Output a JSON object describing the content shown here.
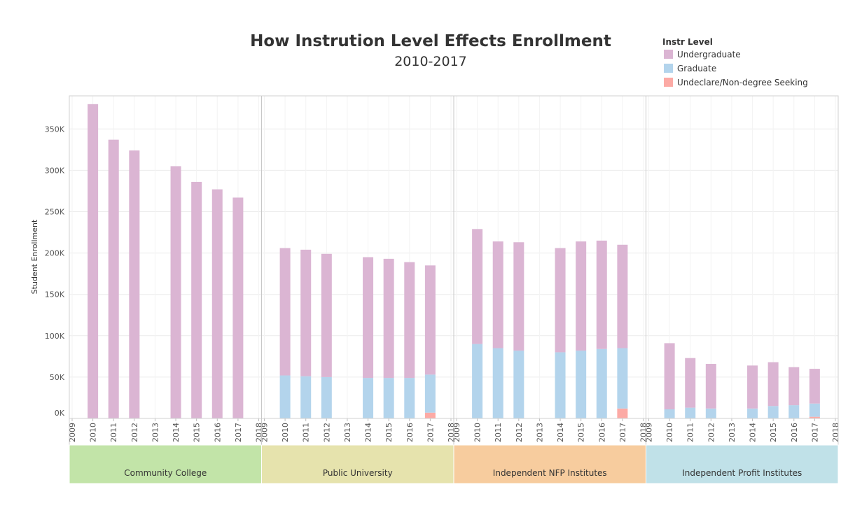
{
  "chart_data": {
    "type": "bar",
    "stacked": true,
    "title": "How Instrution Level Effects Enrollment",
    "subtitle": "2010-2017",
    "ylabel": "Student Enrollment",
    "ylim": [
      0,
      390000
    ],
    "yticks": [
      0,
      50000,
      100000,
      150000,
      200000,
      250000,
      300000,
      350000
    ],
    "ytick_labels": [
      "0K",
      "50K",
      "100K",
      "150K",
      "200K",
      "250K",
      "300K",
      "350K"
    ],
    "x_axis_years": [
      "2009",
      "2010",
      "2011",
      "2012",
      "2013",
      "2014",
      "2015",
      "2016",
      "2017",
      "2018"
    ],
    "legend": {
      "title": "Instr Level",
      "position": "top-right",
      "items": [
        {
          "name": "Undergraduate",
          "color": "#dbb5d3"
        },
        {
          "name": "Graduate",
          "color": "#b3d4ec"
        },
        {
          "name": "Undeclare/Non-degree Seeking",
          "color": "#fcaaa5"
        }
      ]
    },
    "panel_colors": [
      "#c2e4a8",
      "#e6e3ad",
      "#f7cc9e",
      "#c0e1e8"
    ],
    "panels": [
      {
        "name": "Community College",
        "years": [
          2010,
          2011,
          2012,
          2014,
          2015,
          2016,
          2017
        ],
        "undergraduate": [
          380000,
          337000,
          324000,
          305000,
          286000,
          277000,
          267000
        ],
        "graduate": [
          0,
          0,
          0,
          0,
          0,
          0,
          0
        ],
        "undeclared": [
          0,
          0,
          0,
          0,
          0,
          0,
          0
        ]
      },
      {
        "name": "Public University",
        "years": [
          2010,
          2011,
          2012,
          2014,
          2015,
          2016,
          2017
        ],
        "undergraduate": [
          154000,
          153000,
          149000,
          146000,
          144000,
          140000,
          132000
        ],
        "graduate": [
          52000,
          51000,
          50000,
          49000,
          49000,
          49000,
          46000
        ],
        "undeclared": [
          0,
          0,
          0,
          0,
          0,
          0,
          7000
        ]
      },
      {
        "name": "Independent NFP Institutes",
        "years": [
          2010,
          2011,
          2012,
          2014,
          2015,
          2016,
          2017
        ],
        "undergraduate": [
          139000,
          129000,
          131000,
          126000,
          132000,
          131000,
          125000
        ],
        "graduate": [
          90000,
          85000,
          82000,
          80000,
          82000,
          84000,
          73000
        ],
        "undeclared": [
          0,
          0,
          0,
          0,
          0,
          0,
          12000
        ]
      },
      {
        "name": "Independent Profit Institutes",
        "years": [
          2010,
          2011,
          2012,
          2014,
          2015,
          2016,
          2017
        ],
        "undergraduate": [
          80000,
          60000,
          54000,
          52000,
          53000,
          46000,
          42000
        ],
        "graduate": [
          11000,
          13000,
          12000,
          12000,
          15000,
          16000,
          16000
        ],
        "undeclared": [
          0,
          0,
          0,
          0,
          0,
          0,
          2000
        ]
      }
    ]
  }
}
